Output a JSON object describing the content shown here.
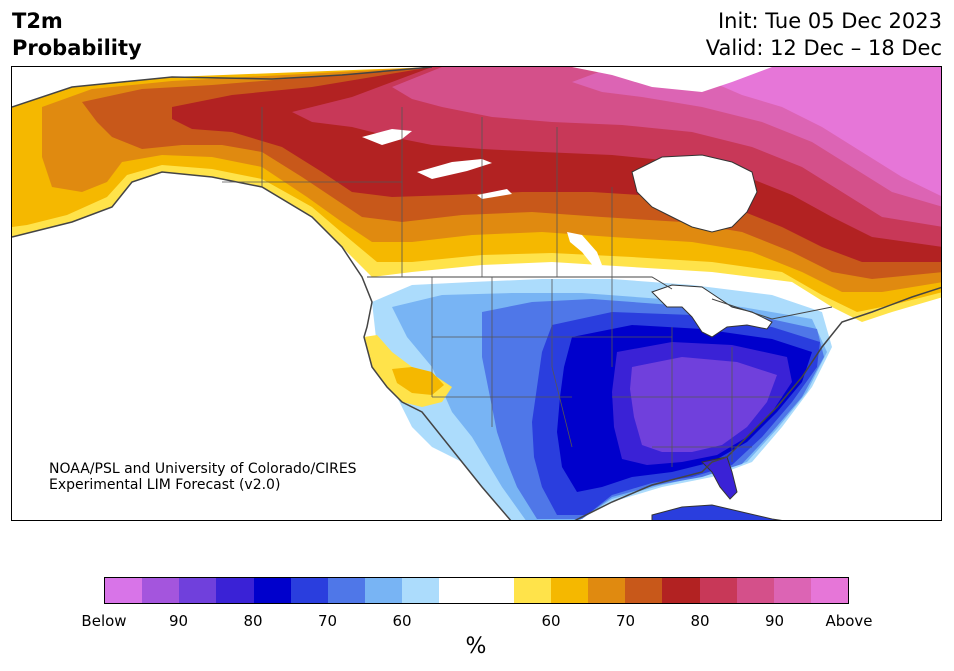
{
  "title": {
    "left_line1": "T2m",
    "left_line2": "Probability",
    "right_line1": "Init: Tue 05 Dec 2023",
    "right_line2": "Valid: 12 Dec – 18 Dec"
  },
  "credit": {
    "line1": "NOAA/PSL and University of Colorado/CIRES",
    "line2": "Experimental LIM Forecast (v2.0)"
  },
  "colorbar": {
    "colors": [
      "#d874e8",
      "#a455dd",
      "#7040dc",
      "#3a22d6",
      "#0000cc",
      "#2a3ede",
      "#4f77e8",
      "#78b4f4",
      "#acdcfc",
      "#ffffff",
      "#ffffff",
      "#ffe34a",
      "#f5b800",
      "#e08a10",
      "#c8581a",
      "#b22222",
      "#c83858",
      "#d4508a",
      "#dc64b4",
      "#e676d8"
    ],
    "labels": [
      "Below",
      "90",
      "80",
      "70",
      "60",
      "60",
      "70",
      "80",
      "90",
      "Above"
    ],
    "unit": "%"
  },
  "regions": {
    "cold_colors": [
      "#acdcfc",
      "#78b4f4",
      "#4f77e8",
      "#2a3ede",
      "#0000cc",
      "#3a22d6",
      "#7040dc"
    ],
    "warm_colors": [
      "#ffe34a",
      "#f5b800",
      "#e08a10",
      "#c8581a",
      "#b22222",
      "#c83858",
      "#d4508a",
      "#dc64b4",
      "#e676d8"
    ]
  }
}
